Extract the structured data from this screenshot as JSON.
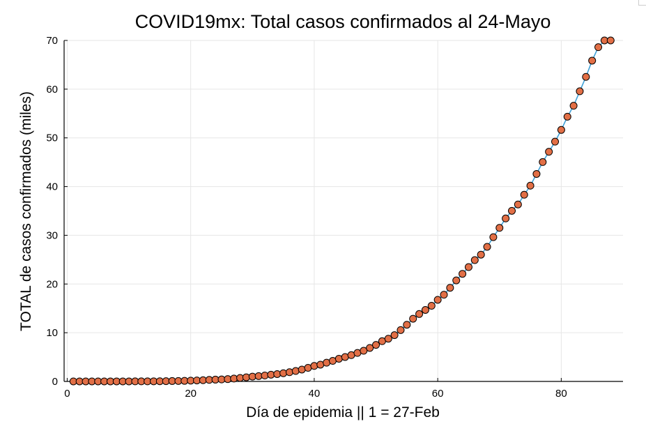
{
  "chart_data": {
    "type": "scatter",
    "title": "COVID19mx: Total casos confirmados al 24-Mayo",
    "xlabel": "Día de epidemia || 1 = 27-Feb",
    "ylabel": "TOTAL de casos confirmados (miles)",
    "xlim": [
      -0.5,
      90
    ],
    "ylim": [
      0,
      70
    ],
    "xticks": [
      0,
      20,
      40,
      60,
      80
    ],
    "yticks": [
      0,
      10,
      20,
      30,
      40,
      50,
      60,
      70
    ],
    "grid": true,
    "legend": "none",
    "series": [
      {
        "line_color": "#3fa1d8",
        "marker_color": "#e26f46",
        "marker_edge": "#000000",
        "x": [
          1,
          2,
          3,
          4,
          5,
          6,
          7,
          8,
          9,
          10,
          11,
          12,
          13,
          14,
          15,
          16,
          17,
          18,
          19,
          20,
          21,
          22,
          23,
          24,
          25,
          26,
          27,
          28,
          29,
          30,
          31,
          32,
          33,
          34,
          35,
          36,
          37,
          38,
          39,
          40,
          41,
          42,
          43,
          44,
          45,
          46,
          47,
          48,
          49,
          50,
          51,
          52,
          53,
          54,
          55,
          56,
          57,
          58,
          59,
          60,
          61,
          62,
          63,
          64,
          65,
          66,
          67,
          68,
          69,
          70,
          71,
          72,
          73,
          74,
          75,
          76,
          77,
          78,
          79,
          80,
          81,
          82,
          83,
          84,
          85,
          86,
          87,
          88
        ],
        "y": [
          0.001,
          0.004,
          0.005,
          0.005,
          0.005,
          0.006,
          0.007,
          0.007,
          0.007,
          0.007,
          0.011,
          0.012,
          0.015,
          0.026,
          0.041,
          0.053,
          0.082,
          0.093,
          0.118,
          0.164,
          0.203,
          0.251,
          0.316,
          0.367,
          0.405,
          0.475,
          0.585,
          0.717,
          0.848,
          0.993,
          1.094,
          1.215,
          1.378,
          1.51,
          1.688,
          1.89,
          2.143,
          2.439,
          2.785,
          3.181,
          3.441,
          3.844,
          4.219,
          4.661,
          5.014,
          5.399,
          5.847,
          6.297,
          6.875,
          7.497,
          8.261,
          8.772,
          9.501,
          10.544,
          11.633,
          12.872,
          13.842,
          14.677,
          15.529,
          16.752,
          17.799,
          19.224,
          20.739,
          22.088,
          23.471,
          24.905,
          26.025,
          27.634,
          29.616,
          31.522,
          33.46,
          35.022,
          36.327,
          38.324,
          40.186,
          42.595,
          45.032,
          47.144,
          49.219,
          51.633,
          54.346,
          56.594,
          59.567,
          62.527,
          65.856,
          68.62,
          70.0,
          70.0
        ]
      }
    ]
  }
}
